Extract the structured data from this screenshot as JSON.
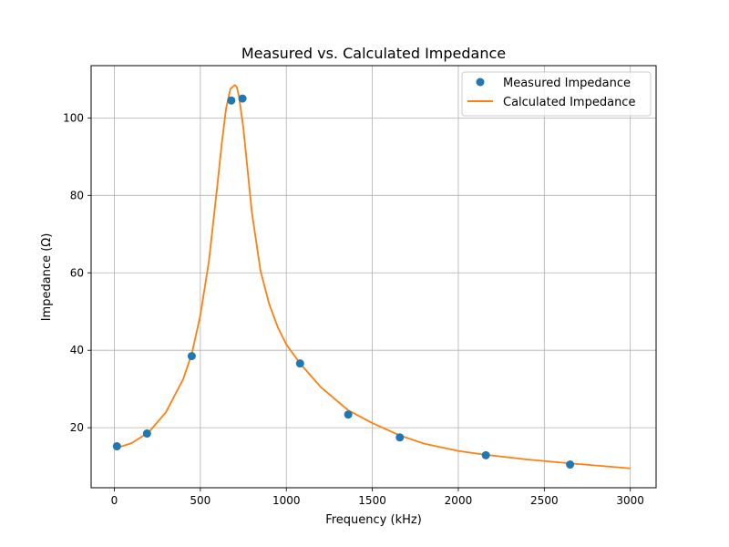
{
  "chart_data": {
    "type": "scatter",
    "title": "Measured vs. Calculated Impedance",
    "xlabel": "Frequency (kHz)",
    "ylabel": "Impedance (Ω)",
    "xlim": [
      -135,
      3150
    ],
    "ylim": [
      4.5,
      113.5
    ],
    "xticks": [
      0,
      500,
      1000,
      1500,
      2000,
      2500,
      3000
    ],
    "yticks": [
      20,
      40,
      60,
      80,
      100
    ],
    "grid": true,
    "legend_position": "top-right",
    "series": [
      {
        "name": "Measured Impedance",
        "kind": "scatter",
        "color": "#1f77b4",
        "x": [
          15,
          190,
          450,
          680,
          745,
          1080,
          1360,
          1660,
          2160,
          2650
        ],
        "y": [
          15.2,
          18.5,
          38.5,
          104.5,
          105.0,
          36.6,
          23.4,
          17.5,
          12.9,
          10.5
        ]
      },
      {
        "name": "Calculated Impedance",
        "kind": "line",
        "color": "#ff7f0e",
        "x": [
          0,
          100,
          200,
          300,
          400,
          450,
          500,
          550,
          600,
          625,
          650,
          675,
          700,
          712,
          725,
          750,
          775,
          800,
          850,
          900,
          950,
          1000,
          1080,
          1200,
          1360,
          1500,
          1660,
          1800,
          2000,
          2160,
          2400,
          2650,
          3000
        ],
        "y": [
          14.6,
          16.0,
          18.8,
          24.0,
          32.5,
          39.0,
          49.0,
          63.0,
          83.0,
          93.5,
          102.5,
          107.5,
          108.5,
          108.0,
          105.5,
          97.5,
          86.5,
          75.5,
          60.5,
          52.0,
          46.0,
          41.5,
          36.6,
          30.5,
          24.5,
          21.2,
          18.0,
          15.9,
          14.0,
          13.0,
          11.8,
          10.8,
          9.5
        ]
      }
    ]
  }
}
